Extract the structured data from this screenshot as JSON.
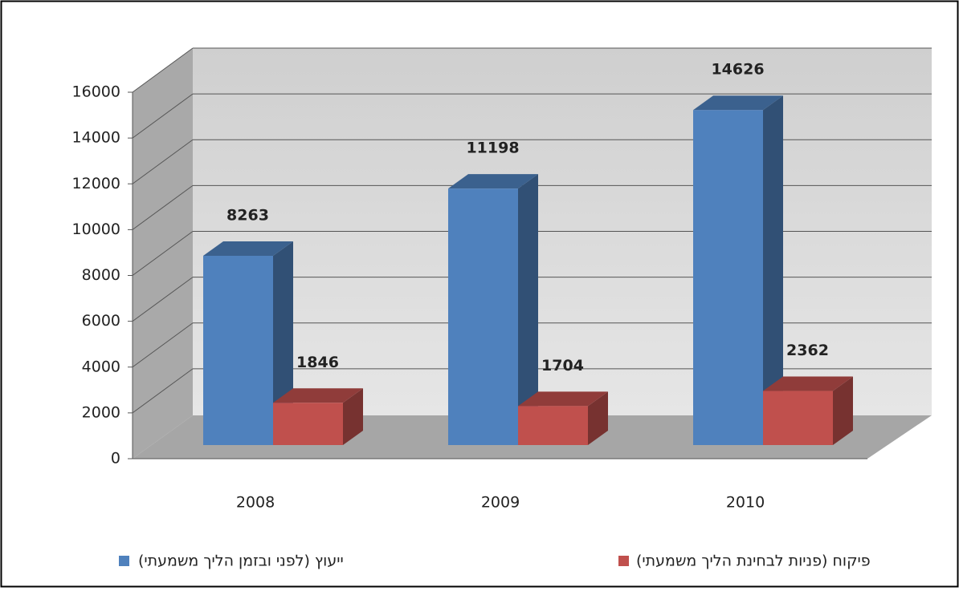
{
  "chart_data": {
    "type": "bar3d",
    "categories": [
      "2008",
      "2009",
      "2010"
    ],
    "series": [
      {
        "name": "ייעוץ (לפני ובזמן הליך משמעתי)",
        "color": "#4f81bd",
        "values": [
          8263,
          11198,
          14626
        ]
      },
      {
        "name": "פיקוח (פניות לבחינת הליך משמעתי)",
        "color": "#c0504d",
        "values": [
          1846,
          1704,
          2362
        ]
      }
    ],
    "ylim": [
      0,
      16000
    ],
    "yticks": [
      0,
      2000,
      4000,
      6000,
      8000,
      10000,
      12000,
      14000,
      16000
    ],
    "grid": true
  }
}
